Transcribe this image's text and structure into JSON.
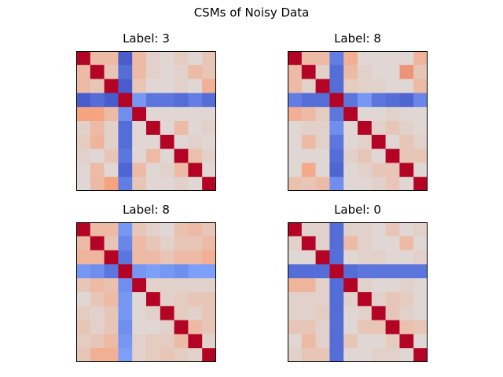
{
  "suptitle": "CSMs of Noisy Data",
  "chart_data": [
    {
      "type": "heatmap",
      "title": "Label: 3",
      "colormap": "coolwarm",
      "vlim": [
        -1,
        1
      ],
      "values": [
        [
          1.0,
          0.3,
          0.3,
          -0.9,
          0.3,
          0.1,
          0.05,
          0.15,
          0.05,
          0.2
        ],
        [
          0.3,
          1.0,
          0.2,
          -0.8,
          0.3,
          0.1,
          0.05,
          0.1,
          0.3,
          0.2
        ],
        [
          0.3,
          0.2,
          1.0,
          -0.9,
          0.2,
          0.05,
          0.05,
          0.1,
          0.05,
          0.4
        ],
        [
          -0.9,
          -0.8,
          -0.9,
          1.0,
          -0.55,
          -0.75,
          -0.75,
          -0.8,
          -0.7,
          -0.8
        ],
        [
          0.5,
          0.5,
          0.3,
          -0.6,
          1.0,
          0.05,
          0.05,
          0.05,
          0.05,
          0.05
        ],
        [
          0.1,
          0.3,
          0.1,
          -0.8,
          0.05,
          1.0,
          0.05,
          0.3,
          0.05,
          0.1
        ],
        [
          0.15,
          0.35,
          0.1,
          -0.8,
          0.05,
          0.05,
          1.0,
          0.05,
          0.1,
          0.05
        ],
        [
          0.1,
          0.05,
          0.2,
          -0.75,
          0.05,
          0.3,
          0.05,
          1.0,
          0.25,
          0.1
        ],
        [
          0.05,
          0.3,
          0.05,
          -0.85,
          0.3,
          0.05,
          0.1,
          0.3,
          1.0,
          0.05
        ],
        [
          0.05,
          0.3,
          0.5,
          -0.7,
          0.2,
          0.05,
          0.05,
          0.1,
          0.05,
          1.0
        ]
      ]
    },
    {
      "type": "heatmap",
      "title": "Label: 8",
      "colormap": "coolwarm",
      "vlim": [
        -1,
        1
      ],
      "values": [
        [
          1.0,
          0.3,
          0.3,
          -0.7,
          0.4,
          0.05,
          0.05,
          0.05,
          0.05,
          0.35
        ],
        [
          0.3,
          1.0,
          0.1,
          -0.8,
          0.3,
          0.1,
          0.05,
          0.05,
          0.55,
          0.2
        ],
        [
          0.3,
          0.1,
          1.0,
          -0.8,
          0.15,
          0.1,
          0.1,
          0.05,
          0.05,
          0.3
        ],
        [
          -0.7,
          -0.8,
          -0.8,
          1.0,
          -0.75,
          -0.55,
          -0.75,
          -0.8,
          -0.85,
          -0.65
        ],
        [
          0.4,
          0.3,
          0.15,
          -0.75,
          1.0,
          0.05,
          0.05,
          0.1,
          0.05,
          0.05
        ],
        [
          0.05,
          0.1,
          0.1,
          -0.6,
          0.05,
          1.0,
          0.1,
          0.2,
          0.1,
          0.05
        ],
        [
          0.05,
          0.3,
          0.1,
          -0.75,
          0.05,
          0.1,
          1.0,
          0.05,
          0.2,
          0.1
        ],
        [
          0.05,
          0.05,
          0.05,
          -0.8,
          0.1,
          0.2,
          0.05,
          1.0,
          0.2,
          0.2
        ],
        [
          0.05,
          0.45,
          0.05,
          -0.85,
          0.05,
          0.1,
          0.2,
          0.2,
          1.0,
          0.05
        ],
        [
          0.25,
          0.2,
          0.3,
          -0.6,
          0.05,
          0.05,
          0.1,
          0.2,
          0.05,
          1.0
        ]
      ]
    },
    {
      "type": "heatmap",
      "title": "Label: 8",
      "colormap": "coolwarm",
      "vlim": [
        -1,
        1
      ],
      "values": [
        [
          1.0,
          0.3,
          0.3,
          -0.55,
          0.2,
          0.1,
          0.05,
          0.25,
          0.3,
          0.2
        ],
        [
          0.3,
          1.0,
          0.2,
          -0.65,
          0.3,
          0.2,
          0.1,
          0.2,
          0.2,
          0.3
        ],
        [
          0.35,
          0.35,
          1.0,
          -0.75,
          0.3,
          0.3,
          0.2,
          0.3,
          0.3,
          0.4
        ],
        [
          -0.55,
          -0.6,
          -0.75,
          1.0,
          -0.55,
          -0.5,
          -0.55,
          -0.6,
          -0.5,
          -0.5
        ],
        [
          0.2,
          0.3,
          0.25,
          -0.6,
          1.0,
          0.1,
          0.1,
          0.1,
          0.1,
          0.1
        ],
        [
          0.05,
          0.2,
          0.3,
          -0.55,
          0.05,
          1.0,
          0.1,
          0.15,
          0.2,
          0.2
        ],
        [
          0.15,
          0.1,
          0.2,
          -0.55,
          0.05,
          0.1,
          1.0,
          0.15,
          0.1,
          0.2
        ],
        [
          0.2,
          0.1,
          0.2,
          -0.6,
          0.05,
          0.05,
          0.1,
          1.0,
          0.3,
          0.2
        ],
        [
          0.15,
          0.2,
          0.3,
          -0.55,
          0.1,
          0.15,
          0.15,
          0.3,
          1.0,
          0.1
        ],
        [
          0.2,
          0.4,
          0.4,
          -0.5,
          0.1,
          0.15,
          0.2,
          0.15,
          0.1,
          1.0
        ]
      ]
    },
    {
      "type": "heatmap",
      "title": "Label: 0",
      "colormap": "coolwarm",
      "vlim": [
        -1,
        1
      ],
      "values": [
        [
          1.0,
          0.1,
          0.1,
          -0.8,
          0.1,
          0.1,
          0.05,
          0.2,
          0.05,
          0.1
        ],
        [
          0.1,
          1.0,
          0.1,
          -0.8,
          0.3,
          0.1,
          0.05,
          0.05,
          0.3,
          0.05
        ],
        [
          0.05,
          0.05,
          1.0,
          -0.8,
          0.05,
          0.1,
          0.1,
          0.05,
          0.05,
          0.1
        ],
        [
          -0.8,
          -0.8,
          -0.8,
          1.0,
          -0.8,
          -0.75,
          -0.75,
          -0.75,
          -0.75,
          -0.75
        ],
        [
          0.35,
          0.35,
          0.1,
          -0.8,
          1.0,
          0.1,
          0.05,
          0.05,
          0.1,
          0.05
        ],
        [
          0.1,
          0.1,
          0.1,
          -0.8,
          0.1,
          1.0,
          0.1,
          0.2,
          0.15,
          0.05
        ],
        [
          0.1,
          0.1,
          0.15,
          -0.8,
          0.05,
          0.1,
          1.0,
          0.2,
          0.1,
          0.05
        ],
        [
          0.2,
          0.2,
          0.1,
          -0.8,
          0.05,
          0.2,
          0.2,
          1.0,
          0.25,
          0.2
        ],
        [
          0.05,
          0.3,
          0.1,
          -0.8,
          0.2,
          0.05,
          0.05,
          0.15,
          1.0,
          0.05
        ],
        [
          0.1,
          0.2,
          0.2,
          -0.8,
          0.05,
          0.05,
          0.1,
          0.1,
          0.05,
          1.0
        ]
      ]
    }
  ]
}
